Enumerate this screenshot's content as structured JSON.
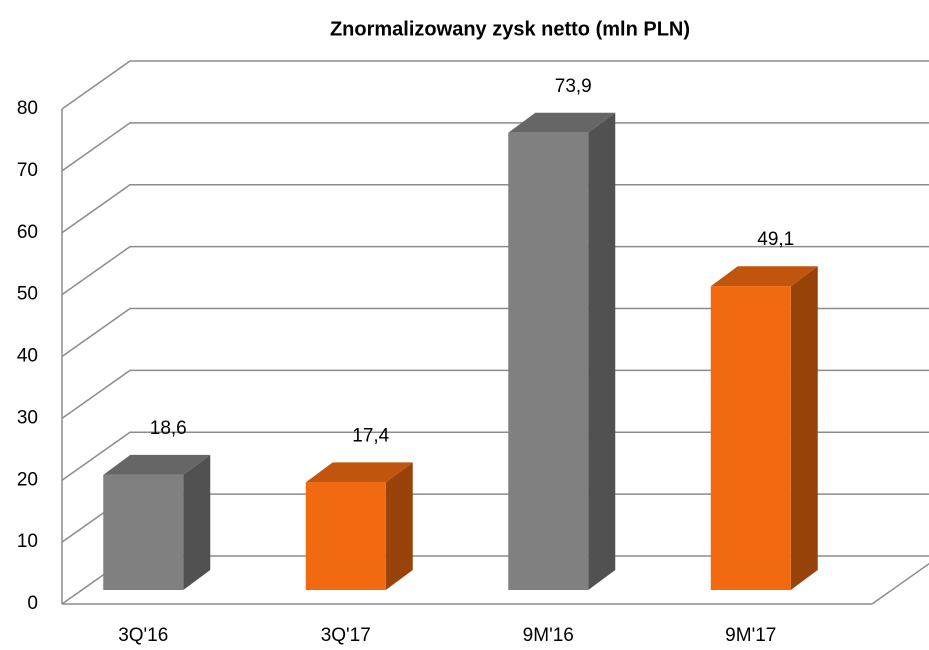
{
  "chart_data": {
    "type": "bar3d",
    "title": "Znormalizowany zysk netto (mln PLN)",
    "categories": [
      "3Q'16",
      "3Q'17",
      "9M'16",
      "9M'17"
    ],
    "values": [
      18.6,
      17.4,
      73.9,
      49.1
    ],
    "value_labels": [
      "18,6",
      "17,4",
      "73,9",
      "49,1"
    ],
    "colors": [
      "#808080",
      "#f26a10",
      "#808080",
      "#f26a10"
    ],
    "ylim": [
      0,
      80
    ],
    "yticks": [
      0,
      10,
      20,
      30,
      40,
      50,
      60,
      70,
      80
    ],
    "grid": true
  }
}
